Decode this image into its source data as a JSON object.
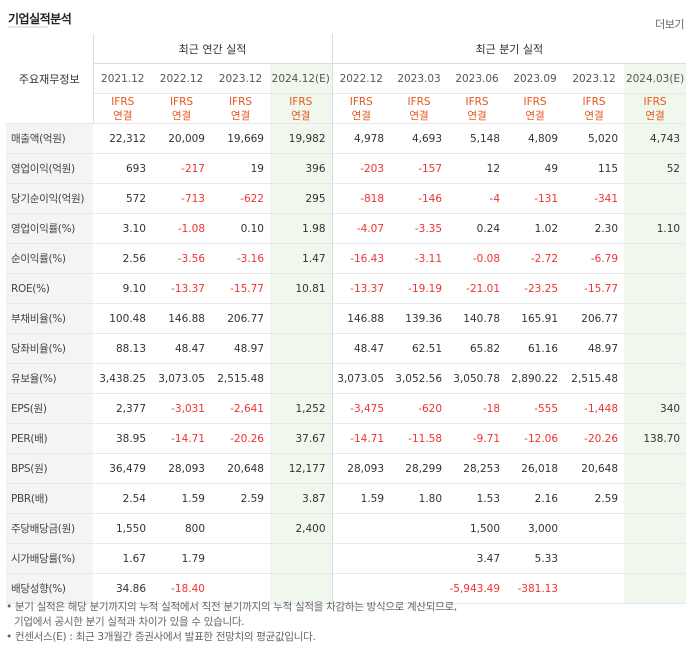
{
  "title": "기업실적분석",
  "more_label": "더보기",
  "row_header_label": "주요재무정보",
  "annual_group_label": "최근 연간 실적",
  "quarter_group_label": "최근 분기 실적",
  "annual_periods": [
    "2021.12",
    "2022.12",
    "2023.12",
    "2024.12(E)"
  ],
  "quarter_periods": [
    "2022.12",
    "2023.03",
    "2023.06",
    "2023.09",
    "2023.12",
    "2024.03(E)"
  ],
  "ifrs_line1": "IFRS",
  "ifrs_line2": "연결",
  "rows": [
    {
      "label": "매출액(억원)",
      "annual": [
        "22,312",
        "20,009",
        "19,669",
        "19,982"
      ],
      "quarter": [
        "4,978",
        "4,693",
        "5,148",
        "4,809",
        "5,020",
        "4,743"
      ]
    },
    {
      "label": "영업이익(억원)",
      "annual": [
        "693",
        "-217",
        "19",
        "396"
      ],
      "quarter": [
        "-203",
        "-157",
        "12",
        "49",
        "115",
        "52"
      ]
    },
    {
      "label": "당기순이익(억원)",
      "annual": [
        "572",
        "-713",
        "-622",
        "295"
      ],
      "quarter": [
        "-818",
        "-146",
        "-4",
        "-131",
        "-341",
        ""
      ]
    },
    {
      "label": "영업이익률(%)",
      "annual": [
        "3.10",
        "-1.08",
        "0.10",
        "1.98"
      ],
      "quarter": [
        "-4.07",
        "-3.35",
        "0.24",
        "1.02",
        "2.30",
        "1.10"
      ]
    },
    {
      "label": "순이익률(%)",
      "annual": [
        "2.56",
        "-3.56",
        "-3.16",
        "1.47"
      ],
      "quarter": [
        "-16.43",
        "-3.11",
        "-0.08",
        "-2.72",
        "-6.79",
        ""
      ]
    },
    {
      "label": "ROE(%)",
      "annual": [
        "9.10",
        "-13.37",
        "-15.77",
        "10.81"
      ],
      "quarter": [
        "-13.37",
        "-19.19",
        "-21.01",
        "-23.25",
        "-15.77",
        ""
      ]
    },
    {
      "label": "부채비율(%)",
      "annual": [
        "100.48",
        "146.88",
        "206.77",
        ""
      ],
      "quarter": [
        "146.88",
        "139.36",
        "140.78",
        "165.91",
        "206.77",
        ""
      ]
    },
    {
      "label": "당좌비율(%)",
      "annual": [
        "88.13",
        "48.47",
        "48.97",
        ""
      ],
      "quarter": [
        "48.47",
        "62.51",
        "65.82",
        "61.16",
        "48.97",
        ""
      ]
    },
    {
      "label": "유보율(%)",
      "annual": [
        "3,438.25",
        "3,073.05",
        "2,515.48",
        ""
      ],
      "quarter": [
        "3,073.05",
        "3,052.56",
        "3,050.78",
        "2,890.22",
        "2,515.48",
        ""
      ]
    },
    {
      "label": "EPS(원)",
      "annual": [
        "2,377",
        "-3,031",
        "-2,641",
        "1,252"
      ],
      "quarter": [
        "-3,475",
        "-620",
        "-18",
        "-555",
        "-1,448",
        "340"
      ]
    },
    {
      "label": "PER(배)",
      "annual": [
        "38.95",
        "-14.71",
        "-20.26",
        "37.67"
      ],
      "quarter": [
        "-14.71",
        "-11.58",
        "-9.71",
        "-12.06",
        "-20.26",
        "138.70"
      ]
    },
    {
      "label": "BPS(원)",
      "annual": [
        "36,479",
        "28,093",
        "20,648",
        "12,177"
      ],
      "quarter": [
        "28,093",
        "28,299",
        "28,253",
        "26,018",
        "20,648",
        ""
      ]
    },
    {
      "label": "PBR(배)",
      "annual": [
        "2.54",
        "1.59",
        "2.59",
        "3.87"
      ],
      "quarter": [
        "1.59",
        "1.80",
        "1.53",
        "2.16",
        "2.59",
        ""
      ]
    },
    {
      "label": "주당배당금(원)",
      "annual": [
        "1,550",
        "800",
        "",
        "2,400"
      ],
      "quarter": [
        "",
        "",
        "1,500",
        "3,000",
        "",
        ""
      ]
    },
    {
      "label": "시가배당률(%)",
      "annual": [
        "1.67",
        "1.79",
        "",
        ""
      ],
      "quarter": [
        "",
        "",
        "3.47",
        "5.33",
        "",
        ""
      ]
    },
    {
      "label": "배당성향(%)",
      "annual": [
        "34.86",
        "-18.40",
        "",
        ""
      ],
      "quarter": [
        "",
        "",
        "-5,943.49",
        "-381.13",
        "",
        ""
      ]
    }
  ],
  "notes": [
    "• 분기 실적은 해당 분기까지의 누적 실적에서 직전 분기까지의 누적 실적을 차감하는 방식으로 계산되므로,",
    "기업에서 공시한 분기 실적과 차이가 있을 수 있습니다.",
    "• 컨센서스(E) : 최근 3개월간 증권사에서 발표한 전망치의 평균값입니다."
  ],
  "colors": {
    "negative": "#ee3333",
    "ifrs": "#e8551c",
    "estimate_bg": "#f0f7ec",
    "label_bg": "#f4f4f4"
  }
}
